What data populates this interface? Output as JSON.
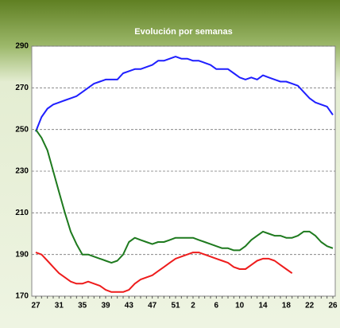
{
  "chart_data": {
    "type": "line",
    "title": "Evolución por semanas",
    "categories": [
      "27",
      null,
      null,
      null,
      "31",
      null,
      null,
      null,
      "35",
      null,
      null,
      null,
      "39",
      null,
      null,
      null,
      "43",
      null,
      null,
      null,
      "47",
      null,
      null,
      null,
      "51",
      null,
      null,
      "2",
      null,
      null,
      null,
      "6",
      null,
      null,
      null,
      "10",
      null,
      null,
      null,
      "14",
      null,
      null,
      null,
      "18",
      null,
      null,
      null,
      "22",
      null,
      null,
      null,
      "26"
    ],
    "series": [
      {
        "name": "blue",
        "color": "#1f1fff",
        "values": [
          249,
          256,
          260,
          262,
          263,
          264,
          265,
          266,
          268,
          270,
          272,
          273,
          274,
          274,
          274,
          277,
          278,
          279,
          279,
          280,
          281,
          283,
          283,
          284,
          285,
          284,
          284,
          283,
          283,
          282,
          281,
          279,
          279,
          279,
          277,
          275,
          274,
          275,
          274,
          276,
          275,
          274,
          273,
          273,
          272,
          271,
          268,
          265,
          263,
          262,
          261,
          257
        ]
      },
      {
        "name": "green",
        "color": "#1e7a1e",
        "values": [
          250,
          246,
          240,
          230,
          220,
          210,
          201,
          195,
          190,
          190,
          189,
          188,
          187,
          186,
          187,
          190,
          196,
          198,
          197,
          196,
          195,
          196,
          196,
          197,
          198,
          198,
          198,
          198,
          197,
          196,
          195,
          194,
          193,
          193,
          192,
          192,
          194,
          197,
          199,
          201,
          200,
          199,
          199,
          198,
          198,
          199,
          201,
          201,
          199,
          196,
          194,
          193
        ]
      },
      {
        "name": "red",
        "color": "#ee1c1c",
        "values": [
          191,
          190,
          187,
          184,
          181,
          179,
          177,
          176,
          176,
          177,
          176,
          175,
          173,
          172,
          172,
          172,
          173,
          176,
          178,
          179,
          180,
          182,
          184,
          186,
          188,
          189,
          190,
          191,
          191,
          190,
          189,
          188,
          187,
          186,
          184,
          183,
          183,
          185,
          187,
          188,
          188,
          187,
          185,
          183,
          181,
          null,
          null,
          null,
          null,
          null,
          null,
          null
        ]
      }
    ],
    "ylim": [
      170,
      290
    ],
    "yticks": [
      170,
      190,
      210,
      230,
      250,
      270,
      290
    ],
    "grid": true
  }
}
